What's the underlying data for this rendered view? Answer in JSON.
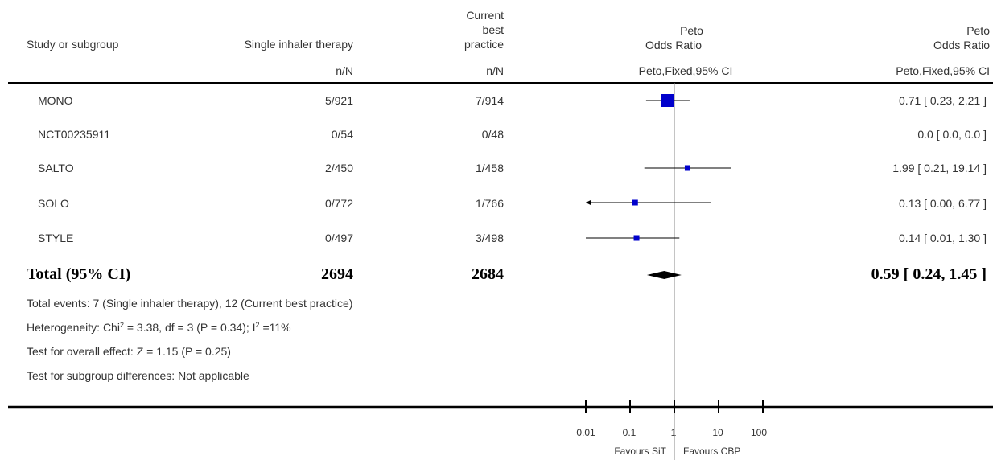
{
  "header": {
    "study_label": "Study or subgroup",
    "group1_label": "Single inhaler therapy",
    "group2_line1": "Current",
    "group2_line2": "best",
    "group2_line3": "practice",
    "n_label_1": "n/N",
    "n_label_2": "n/N",
    "effect_line1": "Peto",
    "effect_line2": "Odds Ratio",
    "effect_method": "Peto,Fixed,95% CI",
    "ci_line1": "Peto",
    "ci_line2": "Odds Ratio",
    "ci_method": "Peto,Fixed,95% CI"
  },
  "total": {
    "label": "Total (95% CI)",
    "n1": "2694",
    "n2": "2684",
    "ci_text": "0.59 [ 0.24, 1.45 ]"
  },
  "footnotes": {
    "events": "Total events: 7 (Single inhaler therapy), 12 (Current best practice)",
    "heterogeneity_a": "Heterogeneity: Chi",
    "heterogeneity_sup1": "2",
    "heterogeneity_b": " = 3.38, df = 3 (P = 0.34); I",
    "heterogeneity_sup2": "2",
    "heterogeneity_c": " =11%",
    "overall": "Test for overall effect: Z = 1.15 (P = 0.25)",
    "subgroup": "Test for subgroup differences: Not applicable"
  },
  "axis": {
    "ticks": [
      "0.01",
      "0.1",
      "1",
      "10",
      "100"
    ],
    "favours_left": "Favours SiT",
    "favours_right": "Favours CBP"
  },
  "chart_data": {
    "type": "forest",
    "scale": "log",
    "xlim": [
      0.01,
      100
    ],
    "reference_line": 1,
    "studies": [
      {
        "name": "MONO",
        "n1": "5/921",
        "n2": "7/914",
        "or": 0.71,
        "lo": 0.23,
        "hi": 2.21,
        "ci_text": "0.71 [ 0.23, 2.21 ]",
        "weight_size": "large"
      },
      {
        "name": "NCT00235911",
        "n1": "0/54",
        "n2": "0/48",
        "or": null,
        "lo": null,
        "hi": null,
        "ci_text": "0.0 [ 0.0, 0.0 ]"
      },
      {
        "name": "SALTO",
        "n1": "2/450",
        "n2": "1/458",
        "or": 1.99,
        "lo": 0.21,
        "hi": 19.14,
        "ci_text": "1.99 [ 0.21, 19.14 ]"
      },
      {
        "name": "SOLO",
        "n1": "0/772",
        "n2": "1/766",
        "or": 0.13,
        "lo": 0.0,
        "hi": 6.77,
        "ci_text": "0.13 [ 0.00, 6.77 ]",
        "arrow_left": true
      },
      {
        "name": "STYLE",
        "n1": "0/497",
        "n2": "3/498",
        "or": 0.14,
        "lo": 0.01,
        "hi": 1.3,
        "ci_text": "0.14 [ 0.01, 1.30 ]"
      }
    ],
    "pooled": {
      "or": 0.59,
      "lo": 0.24,
      "hi": 1.45
    },
    "colors": {
      "marker": "#0000cc",
      "line": "#000000",
      "diamond": "#000000"
    }
  }
}
